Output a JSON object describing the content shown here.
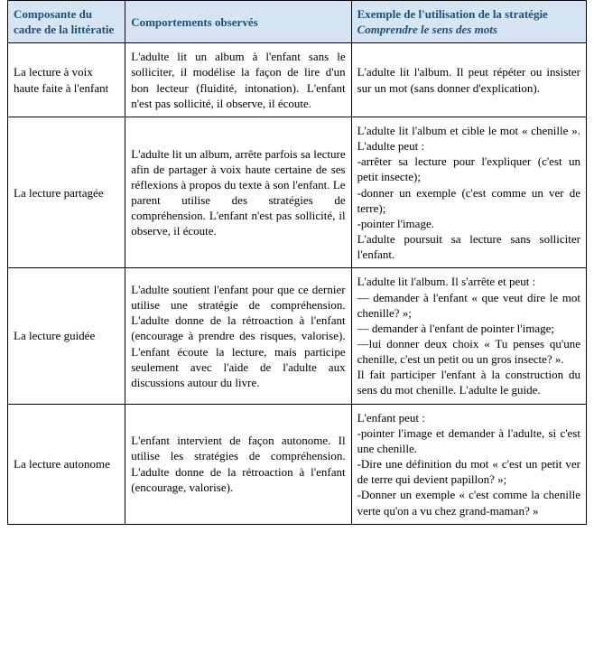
{
  "table": {
    "header_bg": "#d6e5f3",
    "header_text_color": "#1f4e79",
    "border_color": "#000000",
    "font_family": "Times New Roman",
    "headers": {
      "c1": "Composante du cadre de la littératie",
      "c2": "Comportements observés",
      "c3_prefix": "Exemple de l'utilisation de la stratégie ",
      "c3_italic": "Comprendre le sens des mots"
    },
    "rows": [
      {
        "label": "La lecture à voix haute faite à l'enfant",
        "behaviors": "L'adulte lit un album à l'enfant sans le solliciter, il modélise la façon de lire d'un bon lecteur (fluidité, intonation). L'enfant n'est pas sollicité, il observe, il écoute.",
        "example": "L'adulte lit l'album. Il peut répéter ou insister sur un mot (sans donner d'explication)."
      },
      {
        "label": "La lecture partagée",
        "behaviors": "L'adulte lit un album, arrête parfois sa lecture afin de partager à voix haute certaine de ses réflexions à propos du texte à son l'enfant. Le parent utilise des stratégies de compréhension. L'enfant n'est pas sollicité, il observe, il écoute.",
        "example": "L'adulte lit l'album et cible le mot « chenille ». L'adulte peut :\n-arrêter sa lecture pour l'expliquer (c'est un petit insecte);\n-donner un exemple (c'est comme un ver de terre);\n -pointer l'image.\nL'adulte poursuit sa lecture sans solliciter l'enfant."
      },
      {
        "label": "La lecture guidée",
        "behaviors": "L'adulte soutient l'enfant pour que ce dernier utilise une stratégie de compréhension. L'adulte donne de la rétroaction à l'enfant (encourage à prendre des risques, valorise).  L'enfant écoute la lecture, mais participe seulement avec l'aide de l'adulte aux discussions autour du livre.",
        "example": "L'adulte lit l'album. Il s'arrête et peut :\n— demander à l'enfant « que veut dire le mot chenille? »;\n— demander à l'enfant de pointer l'image;\n—lui donner deux choix « Tu penses qu'une chenille, c'est un petit ou un gros insecte? ».\nIl fait participer l'enfant à la construction du sens du mot chenille. L'adulte le guide."
      },
      {
        "label": "La lecture autonome",
        "behaviors": "L'enfant intervient de façon autonome. Il utilise les stratégies de compréhension. L'adulte donne de la rétroaction à l'enfant (encourage, valorise).",
        "example": "L'enfant peut :\n-pointer l'image et demander à l'adulte, si c'est une chenille.\n-Dire une définition du mot « c'est un petit ver de terre qui devient papillon? »;\n-Donner un exemple « c'est comme la chenille verte qu'on a vu chez grand-maman? »"
      }
    ]
  }
}
